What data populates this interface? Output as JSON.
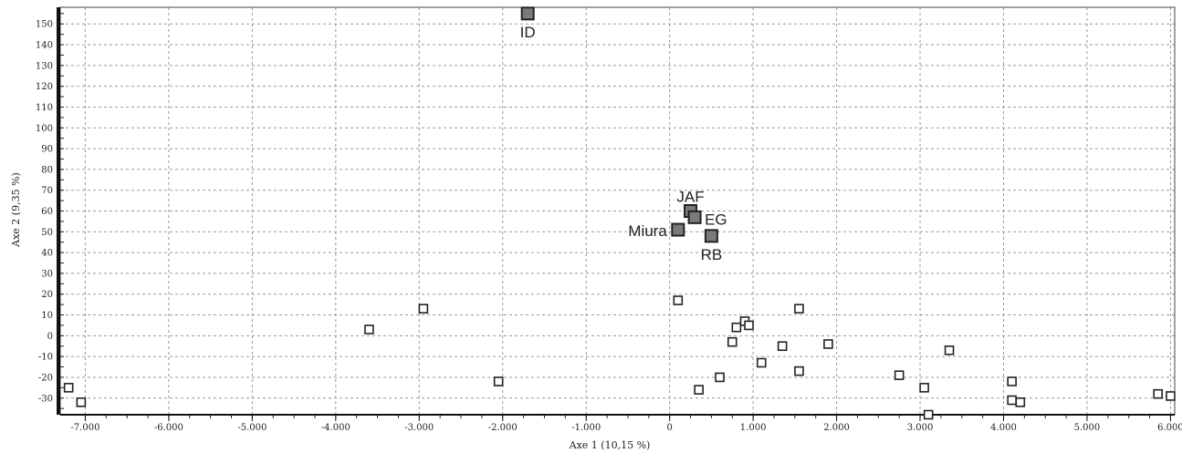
{
  "chart_data": {
    "type": "scatter",
    "xlabel": "Axe 1 (10,15 %)",
    "ylabel": "Axe 2 (9,35 %)",
    "xlim": [
      -7300,
      6050
    ],
    "ylim": [
      -38,
      158
    ],
    "grid": true,
    "x_ticks": [
      {
        "value": -7000,
        "label": "-7.000"
      },
      {
        "value": -6000,
        "label": "-6.000"
      },
      {
        "value": -5000,
        "label": "-5.000"
      },
      {
        "value": -4000,
        "label": "-4.000"
      },
      {
        "value": -3000,
        "label": "-3.000"
      },
      {
        "value": -2000,
        "label": "-2.000"
      },
      {
        "value": -1000,
        "label": "-1.000"
      },
      {
        "value": 0,
        "label": "0"
      },
      {
        "value": 1000,
        "label": "1.000"
      },
      {
        "value": 2000,
        "label": "2.000"
      },
      {
        "value": 3000,
        "label": "3.000"
      },
      {
        "value": 4000,
        "label": "4.000"
      },
      {
        "value": 5000,
        "label": "5.000"
      },
      {
        "value": 6000,
        "label": "6.000"
      }
    ],
    "y_ticks": [
      {
        "value": -30,
        "label": "-30"
      },
      {
        "value": -20,
        "label": "-20"
      },
      {
        "value": -10,
        "label": "-10"
      },
      {
        "value": 0,
        "label": "0"
      },
      {
        "value": 10,
        "label": "10"
      },
      {
        "value": 20,
        "label": "20"
      },
      {
        "value": 30,
        "label": "30"
      },
      {
        "value": 40,
        "label": "40"
      },
      {
        "value": 50,
        "label": "50"
      },
      {
        "value": 60,
        "label": "60"
      },
      {
        "value": 70,
        "label": "70"
      },
      {
        "value": 80,
        "label": "80"
      },
      {
        "value": 90,
        "label": "90"
      },
      {
        "value": 100,
        "label": "100"
      },
      {
        "value": 110,
        "label": "110"
      },
      {
        "value": 120,
        "label": "120"
      },
      {
        "value": 130,
        "label": "130"
      },
      {
        "value": 140,
        "label": "140"
      },
      {
        "value": 150,
        "label": "150"
      }
    ],
    "colors": {
      "highlight_fill": "#7a7a7a",
      "marker_stroke": "#222222",
      "plain_fill": "#ffffff"
    },
    "series": [
      {
        "style": "highlighted",
        "points": [
          {
            "x": -1700,
            "y": 155,
            "label": "ID",
            "label_pos": "below"
          },
          {
            "x": 250,
            "y": 60,
            "label": "JAF",
            "label_pos": "above"
          },
          {
            "x": 300,
            "y": 57,
            "label": "EG",
            "label_pos": "right"
          },
          {
            "x": 100,
            "y": 51,
            "label": "Miura",
            "label_pos": "left"
          },
          {
            "x": 500,
            "y": 48,
            "label": "RB",
            "label_pos": "below"
          }
        ]
      },
      {
        "style": "plain",
        "points": [
          {
            "x": -7200,
            "y": -25
          },
          {
            "x": -7050,
            "y": -32
          },
          {
            "x": -3600,
            "y": 3
          },
          {
            "x": -2950,
            "y": 13
          },
          {
            "x": -2050,
            "y": -22
          },
          {
            "x": 100,
            "y": 17
          },
          {
            "x": 350,
            "y": -26
          },
          {
            "x": 600,
            "y": -20
          },
          {
            "x": 750,
            "y": -3
          },
          {
            "x": 800,
            "y": 4
          },
          {
            "x": 900,
            "y": 7
          },
          {
            "x": 950,
            "y": 5
          },
          {
            "x": 1100,
            "y": -13
          },
          {
            "x": 1350,
            "y": -5
          },
          {
            "x": 1550,
            "y": 13
          },
          {
            "x": 1550,
            "y": -17
          },
          {
            "x": 1900,
            "y": -4
          },
          {
            "x": 2750,
            "y": -19
          },
          {
            "x": 3050,
            "y": -25
          },
          {
            "x": 3100,
            "y": -38
          },
          {
            "x": 3350,
            "y": -7
          },
          {
            "x": 4100,
            "y": -22
          },
          {
            "x": 4100,
            "y": -31
          },
          {
            "x": 4200,
            "y": -32
          },
          {
            "x": 5850,
            "y": -28
          },
          {
            "x": 6000,
            "y": -29
          }
        ]
      }
    ]
  }
}
